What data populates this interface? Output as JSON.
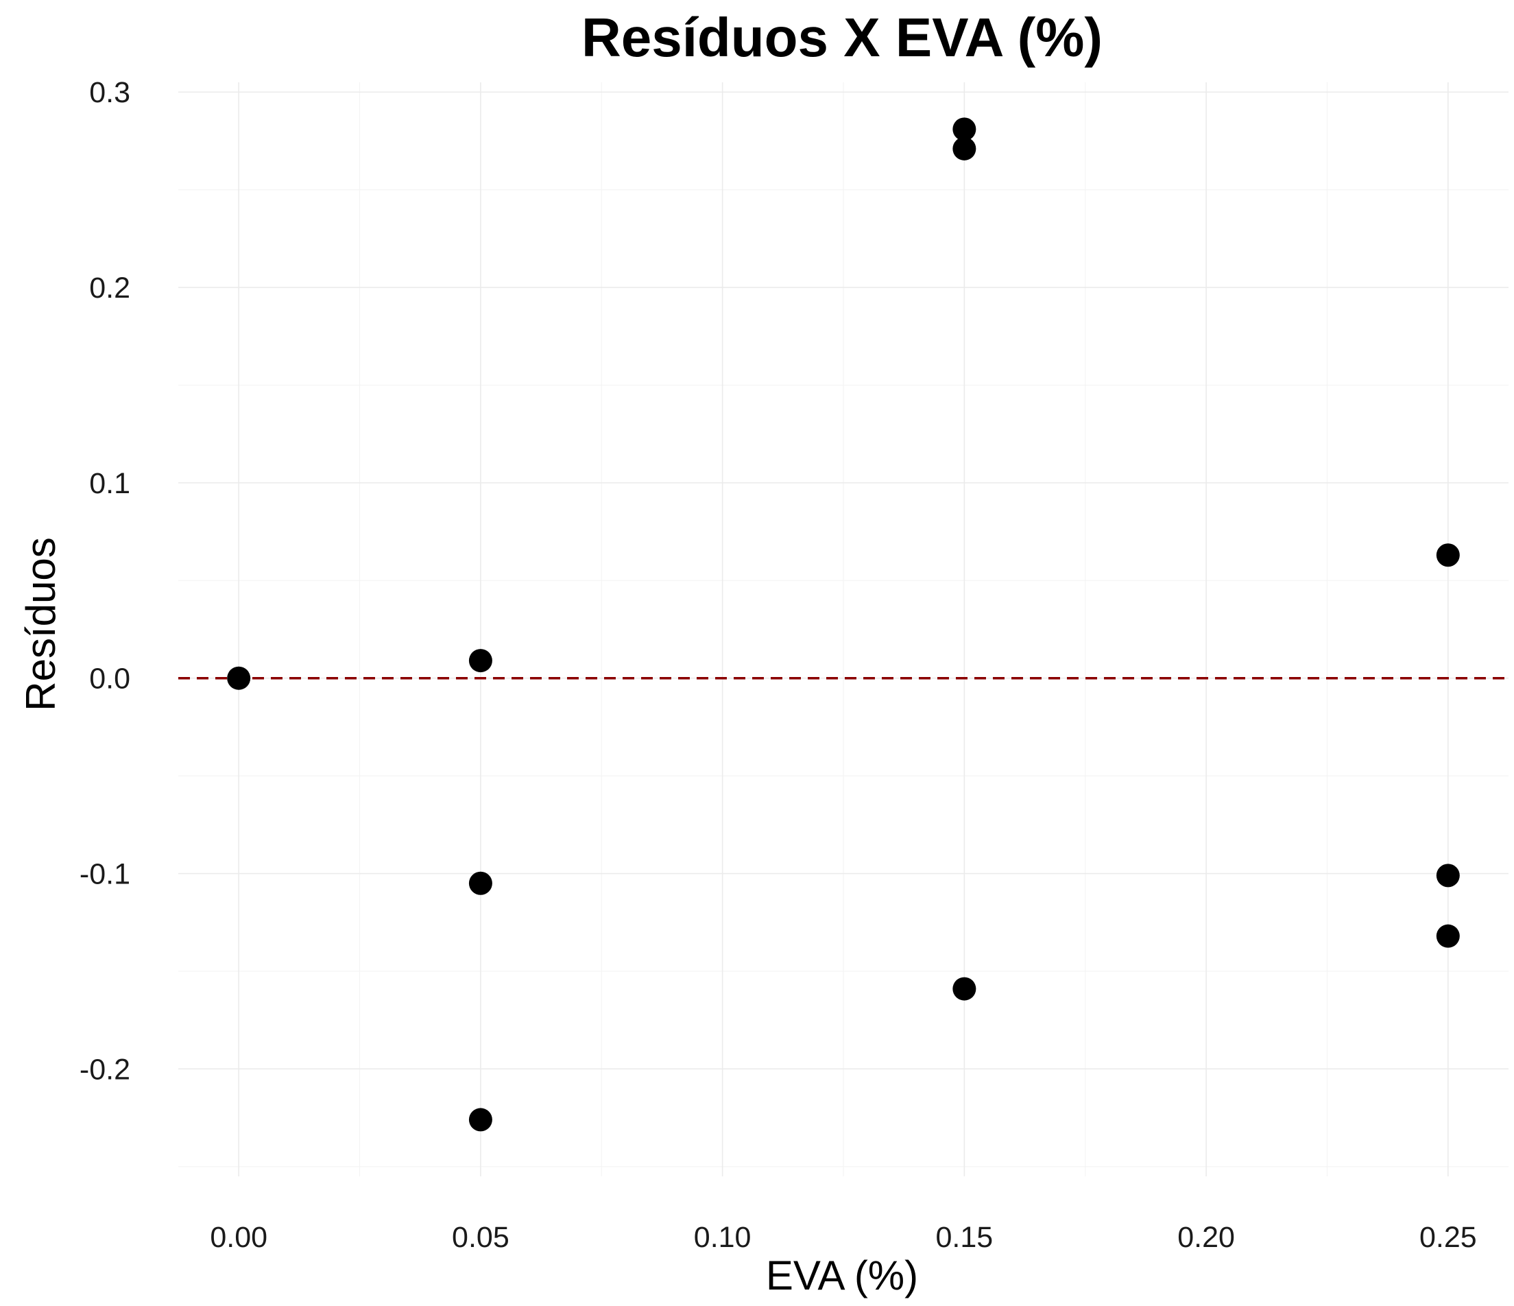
{
  "chart_data": {
    "type": "scatter",
    "title": "Resíduos X EVA (%)",
    "xlabel": "EVA (%)",
    "ylabel": "Resíduos",
    "xlim": [
      -0.0125,
      0.2625
    ],
    "ylim": [
      -0.255,
      0.305
    ],
    "x_ticks": [
      0.0,
      0.05,
      0.1,
      0.15,
      0.2,
      0.25
    ],
    "x_tick_labels": [
      "0.00",
      "0.05",
      "0.10",
      "0.15",
      "0.20",
      "0.25"
    ],
    "x_minor_ticks": [
      0.025,
      0.075,
      0.125,
      0.175,
      0.225
    ],
    "y_ticks": [
      -0.2,
      -0.1,
      0.0,
      0.1,
      0.2,
      0.3
    ],
    "y_tick_labels": [
      "-0.2",
      "-0.1",
      "0.0",
      "0.1",
      "0.2",
      "0.3"
    ],
    "y_minor_ticks": [
      -0.25,
      -0.15,
      -0.05,
      0.05,
      0.15,
      0.25
    ],
    "grid": true,
    "reference_line": {
      "y": 0.0,
      "style": "dashed",
      "color": "#8b0000"
    },
    "point_color": "#000000",
    "points": [
      {
        "x": 0.0,
        "y": 0.0
      },
      {
        "x": 0.05,
        "y": 0.009
      },
      {
        "x": 0.05,
        "y": -0.105
      },
      {
        "x": 0.05,
        "y": -0.226
      },
      {
        "x": 0.15,
        "y": 0.281
      },
      {
        "x": 0.15,
        "y": 0.271
      },
      {
        "x": 0.15,
        "y": -0.159
      },
      {
        "x": 0.25,
        "y": 0.063
      },
      {
        "x": 0.25,
        "y": -0.101
      },
      {
        "x": 0.25,
        "y": -0.132
      }
    ]
  }
}
